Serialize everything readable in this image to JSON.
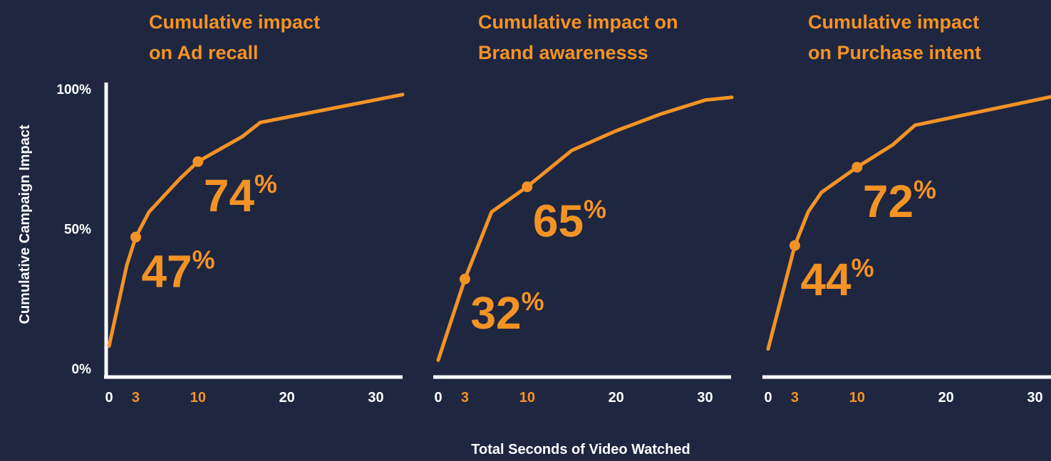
{
  "chart_data": [
    {
      "type": "line",
      "title": [
        "Cumulative impact",
        "on Ad recall"
      ],
      "color": "#f39325",
      "ylabel": "Cumulative Campaign Impact",
      "x": [
        0,
        2,
        3,
        4.5,
        8,
        10,
        15,
        17,
        33
      ],
      "values": [
        8,
        37,
        47,
        56,
        68,
        74,
        83,
        88,
        98
      ],
      "value_labels": [
        null,
        null,
        "47%",
        null,
        null,
        "74%",
        null,
        null,
        null
      ],
      "xlim": [
        0,
        33
      ],
      "xticks": [
        0,
        3,
        10,
        20,
        30
      ],
      "ylim": [
        0,
        100
      ],
      "yticks": [
        {
          "value": 0,
          "label": "0%"
        },
        {
          "value": 50,
          "label": "50%"
        },
        {
          "value": 100,
          "label": "100%"
        }
      ]
    },
    {
      "type": "line",
      "title": [
        "Cumulative impact on",
        "Brand awarenesss"
      ],
      "color": "#f39325",
      "xlabel": "Total Seconds of Video Watched",
      "x": [
        0,
        3,
        6,
        10,
        15,
        20,
        25,
        30,
        33
      ],
      "values": [
        3,
        32,
        56,
        65,
        78,
        85,
        91,
        96,
        97
      ],
      "value_labels": [
        null,
        "32%",
        null,
        "65%",
        null,
        null,
        null,
        null,
        null
      ],
      "xlim": [
        0,
        33
      ],
      "xticks": [
        0,
        3,
        10,
        20,
        30
      ],
      "ylim": [
        0,
        100
      ]
    },
    {
      "type": "line",
      "title": [
        "Cumulative impact",
        "on Purchase intent"
      ],
      "color": "#f39325",
      "x": [
        0,
        3,
        4.5,
        6,
        10,
        14,
        16.5,
        33
      ],
      "values": [
        7,
        44,
        56,
        63,
        72,
        80,
        87,
        98
      ],
      "value_labels": [
        null,
        "44%",
        null,
        null,
        "72%",
        null,
        null,
        null
      ],
      "xlim": [
        0,
        33
      ],
      "xticks": [
        0,
        3,
        10,
        20,
        30
      ],
      "ylim": [
        0,
        100
      ]
    }
  ]
}
